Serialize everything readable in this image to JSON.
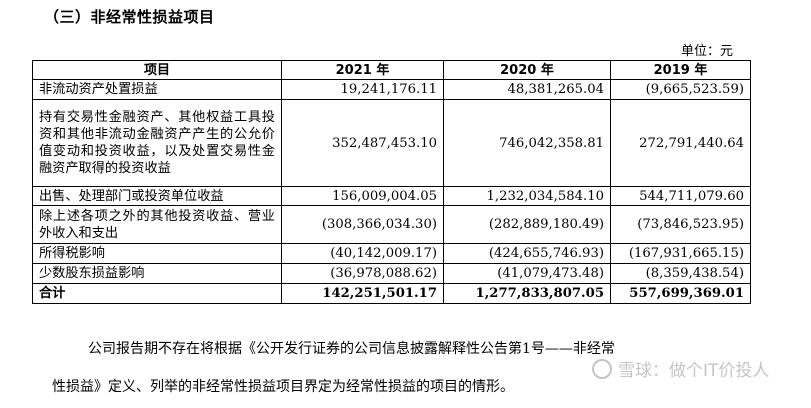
{
  "section_title": "（三）非经常性损益项目",
  "unit": "单位：元",
  "table": {
    "headers": [
      "项目",
      "2021 年",
      "2020 年",
      "2019 年"
    ],
    "rows": [
      {
        "item": "非流动资产处置损益",
        "v2021": "19,241,176.11",
        "v2020": "48,381,265.04",
        "v2019": "(9,665,523.59)"
      },
      {
        "item": "持有交易性金融资产、其他权益工具投资和其他非流动金融资产产生的公允价值变动和投资收益，以及处置交易性金融资产取得的投资收益",
        "v2021": "352,487,453.10",
        "v2020": "746,042,358.81",
        "v2019": "272,791,440.64"
      },
      {
        "item": "出售、处理部门或投资单位收益",
        "v2021": "156,009,004.05",
        "v2020": "1,232,034,584.10",
        "v2019": "544,711,079.60"
      },
      {
        "item": "除上述各项之外的其他投资收益、营业外收入和支出",
        "v2021": "(308,366,034.30)",
        "v2020": "(282,889,180.49)",
        "v2019": "(73,846,523.95)"
      },
      {
        "item": "所得税影响",
        "v2021": "(40,142,009.17)",
        "v2020": "(424,655,746.93)",
        "v2019": "(167,931,665.15)"
      },
      {
        "item": "少数股东损益影响",
        "v2021": "(36,978,088.62)",
        "v2020": "(41,079,473.48)",
        "v2019": "(8,359,438.54)"
      }
    ],
    "total": {
      "item": "合计",
      "v2021": "142,251,501.17",
      "v2020": "1,277,833,807.05",
      "v2019": "557,699,369.01"
    }
  },
  "paragraph": {
    "line1": "公司报告期不存在将根据《公开发行证券的公司信息披露解释性公告第1号——非经常",
    "line2": "性损益》定义、列举的非经常性损益项目界定为经常性损益的项目的情形。"
  },
  "watermark": {
    "text": "雪球：做个IT价投人",
    "icon": "snowball-icon"
  }
}
